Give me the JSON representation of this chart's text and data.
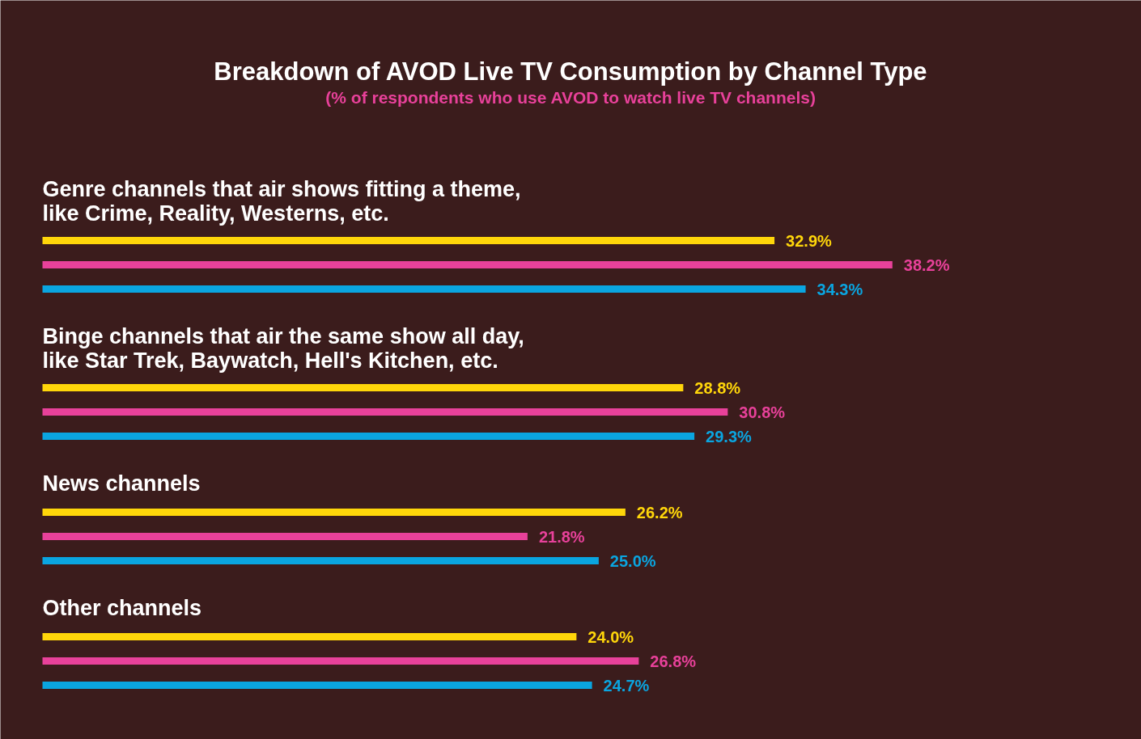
{
  "chart_data": {
    "type": "bar",
    "orientation": "horizontal",
    "title": "Breakdown of AVOD Live TV Consumption by Channel Type",
    "subtitle": "(% of respondents who use AVOD to watch live TV channels)",
    "categories": [
      "Genre channels that air shows fitting a theme, like Crime, Reality, Westerns, etc.",
      "Binge channels that air the same show all day, like Star Trek, Baywatch, Hell's Kitchen, etc.",
      "News channels",
      "Other channels"
    ],
    "series": [
      {
        "color": "#ffd60a",
        "values": [
          32.9,
          28.8,
          26.2,
          24.0
        ],
        "value_labels": [
          "32.9%",
          "28.8%",
          "26.2%",
          "24.0%"
        ]
      },
      {
        "color": "#e8419a",
        "values": [
          38.2,
          30.8,
          21.8,
          26.8
        ],
        "value_labels": [
          "38.2%",
          "30.8%",
          "21.8%",
          "26.8%"
        ]
      },
      {
        "color": "#0aa5e0",
        "values": [
          34.3,
          29.3,
          25.0,
          24.7
        ],
        "value_labels": [
          "34.3%",
          "29.3%",
          "25.0%",
          "24.7%"
        ]
      }
    ],
    "grid": false
  }
}
